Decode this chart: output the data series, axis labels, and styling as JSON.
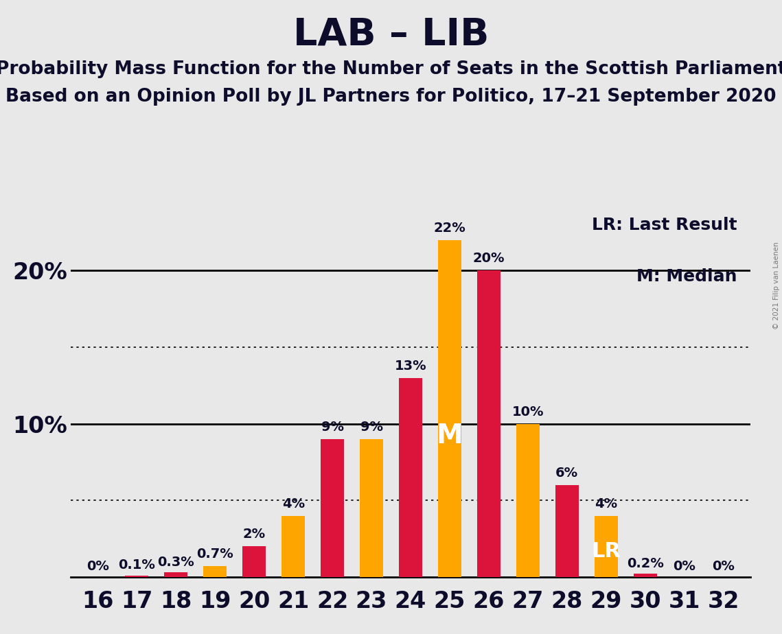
{
  "title": "LAB – LIB",
  "subtitle1": "Probability Mass Function for the Number of Seats in the Scottish Parliament",
  "subtitle2": "Based on an Opinion Poll by JL Partners for Politico, 17–21 September 2020",
  "copyright": "© 2021 Filip van Laenen",
  "seats": [
    16,
    17,
    18,
    19,
    20,
    21,
    22,
    23,
    24,
    25,
    26,
    27,
    28,
    29,
    30,
    31,
    32
  ],
  "values": [
    0.0,
    0.1,
    0.3,
    0.7,
    2.0,
    4.0,
    9.0,
    9.0,
    13.0,
    22.0,
    20.0,
    10.0,
    6.0,
    4.0,
    0.2,
    0.0,
    0.0
  ],
  "colors": [
    "#DC143C",
    "#DC143C",
    "#DC143C",
    "#FFA500",
    "#DC143C",
    "#FFA500",
    "#DC143C",
    "#FFA500",
    "#DC143C",
    "#FFA500",
    "#DC143C",
    "#FFA500",
    "#DC143C",
    "#FFA500",
    "#DC143C",
    "#DC143C",
    "#DC143C"
  ],
  "bar_labels": [
    "0%",
    "0.1%",
    "0.3%",
    "0.7%",
    "2%",
    "4%",
    "9%",
    "9%",
    "13%",
    "22%",
    "20%",
    "10%",
    "6%",
    "4%",
    "0.2%",
    "0%",
    "0%"
  ],
  "lab_color": "#DC143C",
  "lib_color": "#FFA500",
  "background_color": "#E8E8E8",
  "text_color": "#0d0d2b",
  "bar_width": 0.6,
  "ylim": [
    0,
    24
  ],
  "dotted_lines": [
    5.0,
    15.0
  ],
  "solid_lines": [
    10.0,
    20.0
  ],
  "median_idx": 9,
  "lr_idx": 13,
  "legend_lr": "LR: Last Result",
  "legend_m": "M: Median",
  "title_fontsize": 40,
  "subtitle_fontsize": 19,
  "label_fontsize": 14,
  "axis_fontsize": 24
}
